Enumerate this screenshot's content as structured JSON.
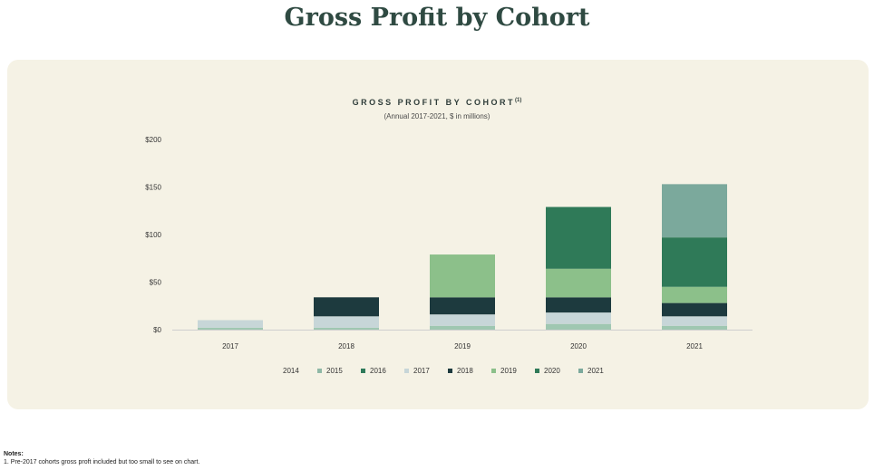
{
  "page": {
    "title": "Gross Profit by Cohort"
  },
  "chart_header": {
    "title": "GROSS PROFIT BY COHORT",
    "footnote_marker": "(1)",
    "subtitle": "(Annual 2017-2021, $ in millions)"
  },
  "notes": {
    "heading": "Notes:",
    "items": [
      "1.  Pre-2017 cohorts gross proft included but too small to see on chart."
    ]
  },
  "colors": {
    "2014": "#c9dccf",
    "2015": "#8fb8a6",
    "2016": "#2e7a5a",
    "2017": "#c7d6d8",
    "2018": "#1d3a3e",
    "2019": "#8cc08a",
    "2020": "#2f7a58",
    "2021": "#7ba99c"
  },
  "chart_data": {
    "type": "bar",
    "stacked": true,
    "title": "GROSS PROFIT BY COHORT",
    "subtitle": "(Annual 2017-2021, $ in millions)",
    "xlabel": "",
    "ylabel": "",
    "categories": [
      "2017",
      "2018",
      "2019",
      "2020",
      "2021"
    ],
    "y_ticks": [
      "$0",
      "$50",
      "$100",
      "$150",
      "$200"
    ],
    "ylim": [
      0,
      200
    ],
    "grid": false,
    "legend_position": "bottom",
    "series": [
      {
        "name": "2014",
        "values": [
          0,
          0,
          0,
          0,
          0
        ]
      },
      {
        "name": "2015",
        "values": [
          0,
          0,
          0,
          0,
          0
        ]
      },
      {
        "name": "2016",
        "values": [
          0,
          0,
          0,
          0,
          0
        ]
      },
      {
        "name": "2017",
        "values": [
          8,
          12,
          12,
          12,
          10
        ]
      },
      {
        "name": "2018",
        "values": [
          0,
          20,
          18,
          16,
          14
        ]
      },
      {
        "name": "2019",
        "values": [
          0,
          0,
          45,
          30,
          17
        ]
      },
      {
        "name": "2020",
        "values": [
          0,
          0,
          0,
          65,
          52
        ]
      },
      {
        "name": "2021",
        "values": [
          0,
          0,
          0,
          0,
          56
        ]
      }
    ],
    "base_values": [
      2,
      2,
      4,
      6,
      4
    ]
  }
}
